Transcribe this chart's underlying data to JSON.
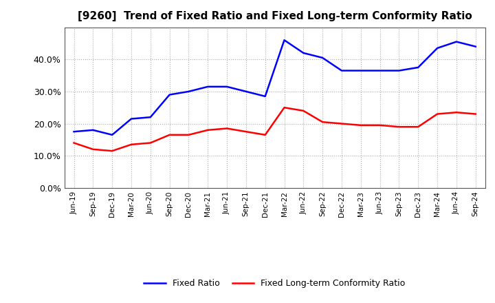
{
  "title": "[9260]  Trend of Fixed Ratio and Fixed Long-term Conformity Ratio",
  "x_labels": [
    "Jun-19",
    "Sep-19",
    "Dec-19",
    "Mar-20",
    "Jun-20",
    "Sep-20",
    "Dec-20",
    "Mar-21",
    "Jun-21",
    "Sep-21",
    "Dec-21",
    "Mar-22",
    "Jun-22",
    "Sep-22",
    "Dec-22",
    "Mar-23",
    "Jun-23",
    "Sep-23",
    "Dec-23",
    "Mar-24",
    "Jun-24",
    "Sep-24"
  ],
  "fixed_ratio": [
    17.5,
    18.0,
    16.5,
    21.5,
    22.0,
    29.0,
    30.0,
    31.5,
    31.5,
    30.0,
    28.5,
    46.0,
    42.0,
    40.5,
    36.5,
    36.5,
    36.5,
    36.5,
    37.5,
    43.5,
    45.5,
    44.0
  ],
  "fixed_lt_ratio": [
    14.0,
    12.0,
    11.5,
    13.5,
    14.0,
    16.5,
    16.5,
    18.0,
    18.5,
    17.5,
    16.5,
    25.0,
    24.0,
    20.5,
    20.0,
    19.5,
    19.5,
    19.0,
    19.0,
    23.0,
    23.5,
    23.0
  ],
  "fixed_ratio_color": "#0000FF",
  "fixed_lt_ratio_color": "#FF0000",
  "ylim": [
    0,
    50
  ],
  "yticks": [
    0,
    10,
    20,
    30,
    40
  ],
  "background_color": "#FFFFFF",
  "grid_color": "#AAAAAA",
  "title_fontsize": 11,
  "legend_fixed_ratio": "Fixed Ratio",
  "legend_fixed_lt_ratio": "Fixed Long-term Conformity Ratio"
}
